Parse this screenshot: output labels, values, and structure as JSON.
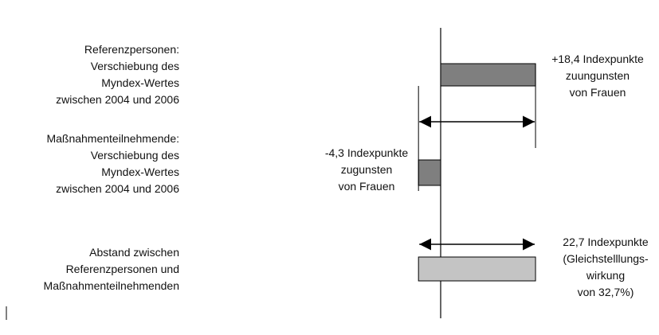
{
  "chart_data": {
    "type": "bar",
    "orientation": "horizontal",
    "categories": [
      "Referenzpersonen:\nVerschiebung des\nMyndex-Wertes\nzwischen 2004 und 2006",
      "Maßnahmenteilnehmende:\nVerschiebung des\nMyndex-Wertes\nzwischen 2004 und 2006",
      "Abstand zwischen\nReferenzpersonen und\nMaßnahmenteilnehmenden"
    ],
    "values": [
      18.4,
      -4.3,
      22.7
    ],
    "value_labels": [
      "+18,4 Indexpunkte\nzuungunsten\nvon Frauen",
      "-4,3 Indexpunkte\nzugunsten\nvon Frauen",
      "22,7 Indexpunkte\n(Gleichstelllungs-\nwirkung\nvon 32,7%)"
    ],
    "colors": [
      "#7f7f7f",
      "#7f7f7f",
      "#c4c4c4"
    ]
  }
}
